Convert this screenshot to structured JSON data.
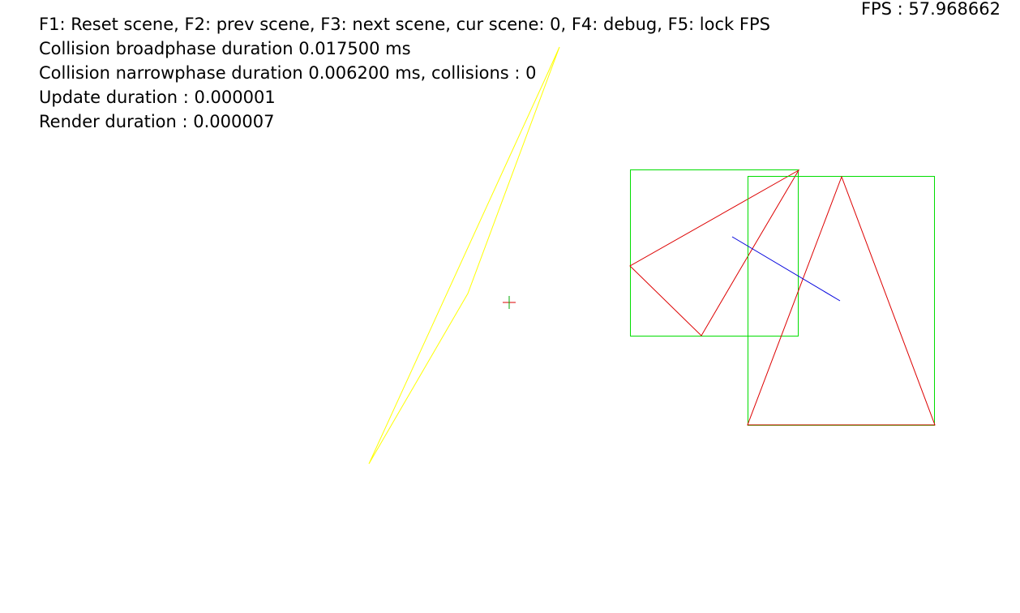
{
  "hud": {
    "controls_line": "F1: Reset scene, F2: prev scene, F3: next scene, cur scene: 0, F4: debug, F5: lock FPS",
    "broadphase_line": "Collision broadphase duration 0.017500 ms",
    "narrowphase_line": "Collision narrowphase duration 0.006200 ms, collisions : 0",
    "update_line": "Update duration : 0.000001",
    "render_line": "Render duration : 0.000007",
    "fps_line": "FPS : 57.968662"
  },
  "colors": {
    "background": "#ffffff",
    "text": "#000000",
    "bounding_box": "#00dd00",
    "polygon_outline": "#dd0000",
    "debug_line": "#0000dd",
    "selected_shape": "#ffff00",
    "origin_marker_horizontal": "#dd0000",
    "origin_marker_vertical": "#00aa00"
  }
}
